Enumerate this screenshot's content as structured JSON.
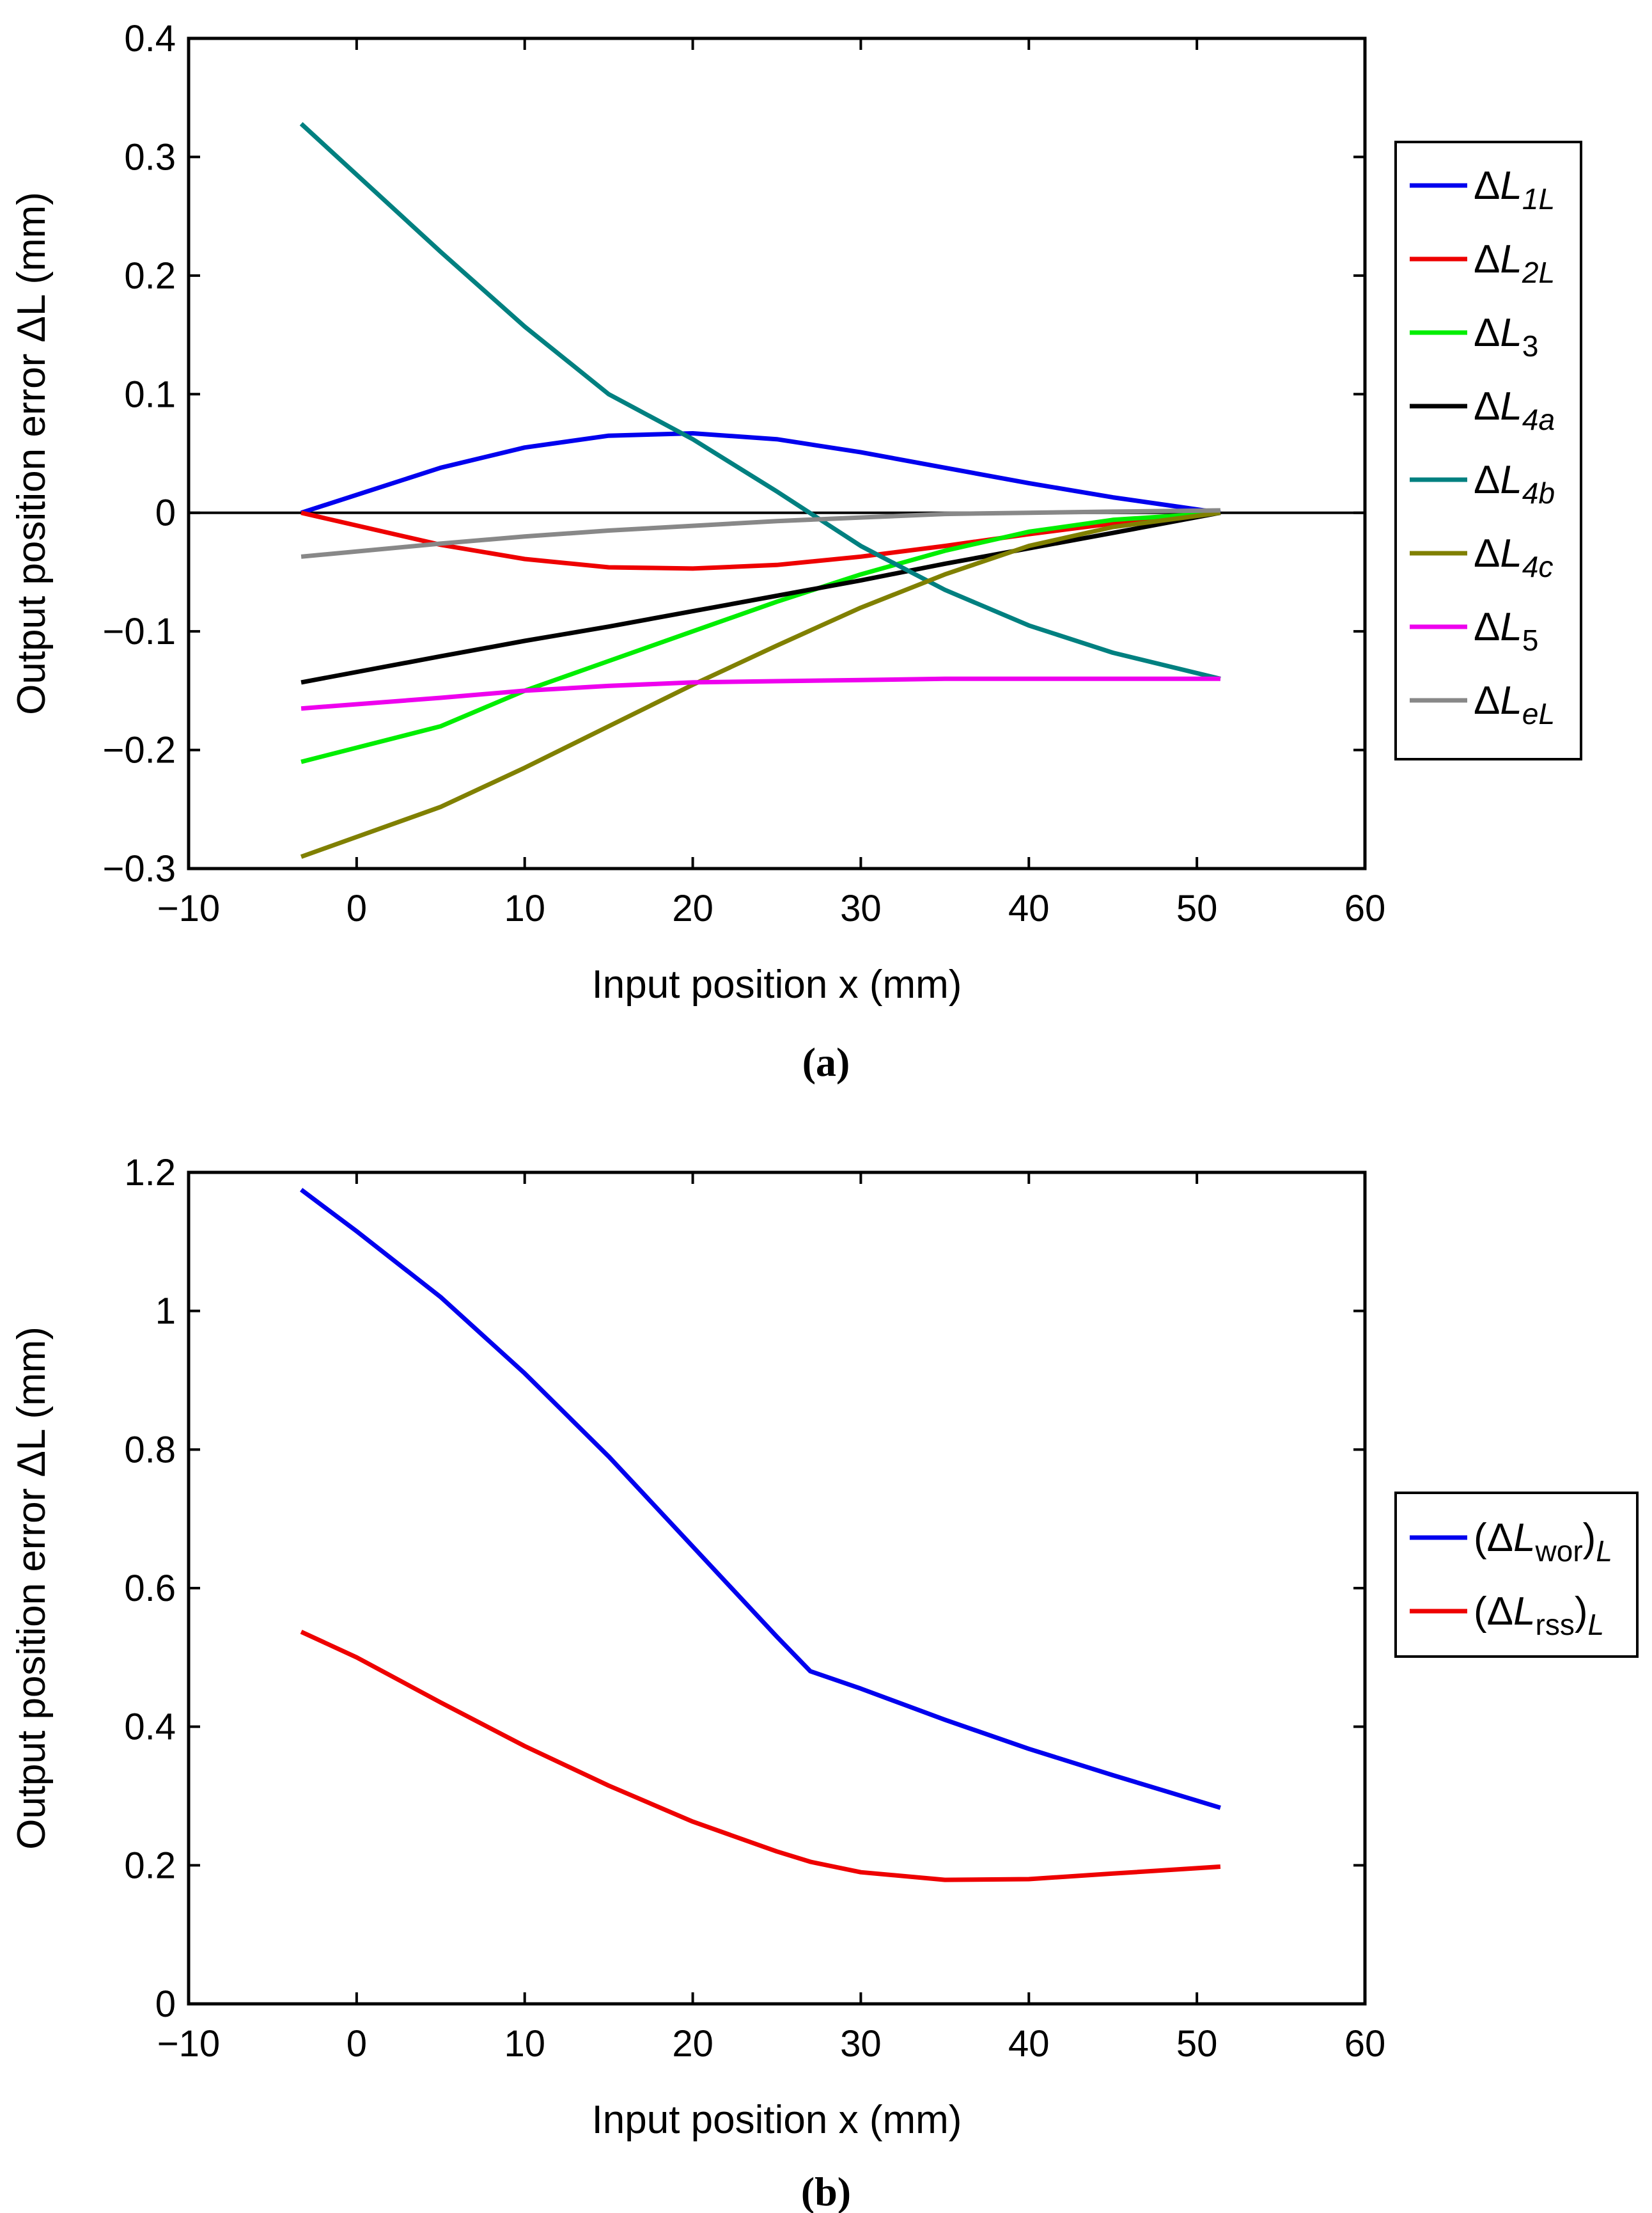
{
  "chart_data": [
    {
      "type": "line",
      "caption": "(a)",
      "xlabel": "Input position x (mm)",
      "ylabel": "Output position error ΔL (mm)",
      "xlim": [
        -10,
        60
      ],
      "ylim": [
        -0.3,
        0.4
      ],
      "xticks": [
        "−10",
        "0",
        "10",
        "20",
        "30",
        "40",
        "50",
        "60"
      ],
      "yticks": [
        "−0.3",
        "−0.2",
        "−0.1",
        "0",
        "0.1",
        "0.2",
        "0.3",
        "0.4"
      ],
      "grid": false,
      "legend_position": "right",
      "zero_line": true,
      "x": [
        -3.3,
        5,
        10,
        15,
        20,
        25,
        30,
        35,
        40,
        45,
        51.4
      ],
      "series": [
        {
          "name": "ΔL1L",
          "color": "#0000ee",
          "label": {
            "base": "ΔL",
            "sub": "1L",
            "italic_sub": true
          },
          "values": [
            0.0,
            0.038,
            0.055,
            0.065,
            0.067,
            0.062,
            0.051,
            0.038,
            0.025,
            0.013,
            0.0
          ]
        },
        {
          "name": "ΔL2L",
          "color": "#ee0000",
          "label": {
            "base": "ΔL",
            "sub": "2L",
            "italic_sub": true
          },
          "values": [
            0.0,
            -0.027,
            -0.039,
            -0.046,
            -0.047,
            -0.044,
            -0.037,
            -0.028,
            -0.018,
            -0.009,
            0.0
          ]
        },
        {
          "name": "ΔL3",
          "color": "#00ee00",
          "label": {
            "base": "ΔL",
            "sub": "3",
            "italic_sub": false
          },
          "values": [
            -0.21,
            -0.18,
            -0.15,
            -0.125,
            -0.1,
            -0.075,
            -0.052,
            -0.032,
            -0.016,
            -0.006,
            0.0
          ]
        },
        {
          "name": "ΔL4a",
          "color": "#000000",
          "label": {
            "base": "ΔL",
            "sub": "4a",
            "italic_sub": true
          },
          "values": [
            -0.143,
            -0.121,
            -0.108,
            -0.096,
            -0.083,
            -0.07,
            -0.057,
            -0.043,
            -0.03,
            -0.017,
            0.0
          ]
        },
        {
          "name": "ΔL4b",
          "color": "#008080",
          "label": {
            "base": "ΔL",
            "sub": "4b",
            "italic_sub": true
          },
          "values": [
            0.328,
            0.22,
            0.157,
            0.1,
            0.062,
            0.018,
            -0.028,
            -0.065,
            -0.095,
            -0.118,
            -0.14
          ]
        },
        {
          "name": "ΔL4c",
          "color": "#808000",
          "label": {
            "base": "ΔL",
            "sub": "4c",
            "italic_sub": true
          },
          "values": [
            -0.29,
            -0.248,
            -0.215,
            -0.18,
            -0.145,
            -0.112,
            -0.08,
            -0.052,
            -0.028,
            -0.012,
            0.0
          ]
        },
        {
          "name": "ΔL5",
          "color": "#ee00ee",
          "label": {
            "base": "ΔL",
            "sub": "5",
            "italic_sub": false
          },
          "values": [
            -0.165,
            -0.156,
            -0.15,
            -0.146,
            -0.143,
            -0.142,
            -0.141,
            -0.14,
            -0.14,
            -0.14,
            -0.14
          ]
        },
        {
          "name": "ΔLeL",
          "color": "#888888",
          "label": {
            "base": "ΔL",
            "sub": "eL",
            "italic_sub": true
          },
          "values": [
            -0.037,
            -0.026,
            -0.02,
            -0.015,
            -0.011,
            -0.007,
            -0.004,
            -0.001,
            0.0,
            0.001,
            0.002
          ]
        }
      ]
    },
    {
      "type": "line",
      "caption": "(b)",
      "xlabel": "Input position x (mm)",
      "ylabel": "Output position error ΔL (mm)",
      "xlim": [
        -10,
        60
      ],
      "ylim": [
        0,
        1.2
      ],
      "xticks": [
        "−10",
        "0",
        "10",
        "20",
        "30",
        "40",
        "50",
        "60"
      ],
      "yticks": [
        "0",
        "0.2",
        "0.4",
        "0.6",
        "0.8",
        "1",
        "1.2"
      ],
      "grid": false,
      "legend_position": "right",
      "zero_line": false,
      "x": [
        -3.3,
        0,
        5,
        10,
        15,
        20,
        25,
        27,
        30,
        35,
        40,
        45,
        51.4
      ],
      "series": [
        {
          "name": "(ΔLwor)L",
          "color": "#0000ee",
          "label": {
            "base": "(ΔL",
            "sub": "wor",
            "tail": ")",
            "tail_sub": "L"
          },
          "values": [
            1.175,
            1.115,
            1.02,
            0.91,
            0.79,
            0.66,
            0.53,
            0.48,
            0.455,
            0.41,
            0.368,
            0.33,
            0.283
          ]
        },
        {
          "name": "(ΔLrss)L",
          "color": "#ee0000",
          "label": {
            "base": "(ΔL",
            "sub": "rss",
            "tail": ")",
            "tail_sub": "L"
          },
          "values": [
            0.537,
            0.5,
            0.435,
            0.372,
            0.315,
            0.263,
            0.22,
            0.205,
            0.19,
            0.179,
            0.18,
            0.188,
            0.198
          ]
        }
      ]
    }
  ]
}
